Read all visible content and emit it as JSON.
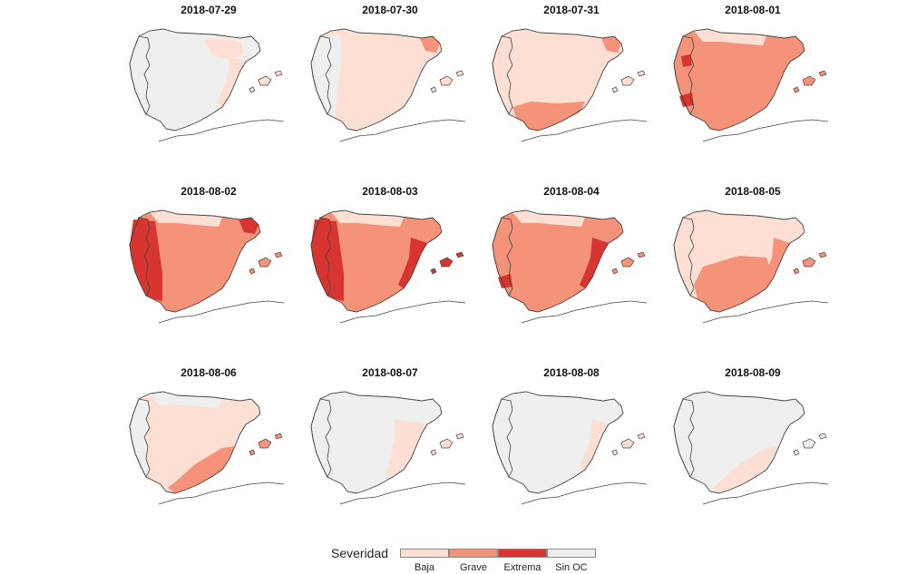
{
  "colors": {
    "Baja": "#fde0d3",
    "Grave": "#f4937a",
    "Extrema": "#d93530",
    "Sin OC": "#efefef",
    "outline": "#444444"
  },
  "panels": [
    {
      "date": "2018-07-29",
      "portugal": "Sin OC",
      "iberia": "Sin OC",
      "zones": [
        {
          "c": "Baja",
          "shape": "northeast"
        },
        {
          "c": "Baja",
          "shape": "east_coast"
        }
      ],
      "balearic": "Baja"
    },
    {
      "date": "2018-07-30",
      "portugal": "Sin OC",
      "iberia": "Baja",
      "zones": [
        {
          "c": "Sin OC",
          "shape": "west_strip"
        },
        {
          "c": "Grave",
          "shape": "ne_tip"
        }
      ],
      "balearic": "Baja"
    },
    {
      "date": "2018-07-31",
      "portugal": "Baja",
      "iberia": "Baja",
      "zones": [
        {
          "c": "Grave",
          "shape": "south"
        },
        {
          "c": "Grave",
          "shape": "ne_tip"
        }
      ],
      "balearic": "Baja"
    },
    {
      "date": "2018-08-01",
      "portugal": "Grave",
      "iberia": "Grave",
      "zones": [
        {
          "c": "Baja",
          "shape": "north_coast"
        },
        {
          "c": "Extrema",
          "shape": "pt_spot_n"
        },
        {
          "c": "Extrema",
          "shape": "pt_spot_s"
        }
      ],
      "balearic": "Grave"
    },
    {
      "date": "2018-08-02",
      "portugal": "Extrema",
      "iberia": "Grave",
      "zones": [
        {
          "c": "Baja",
          "shape": "north_coast"
        },
        {
          "c": "Extrema",
          "shape": "west_band"
        },
        {
          "c": "Extrema",
          "shape": "ne_tip"
        }
      ],
      "balearic": "Grave"
    },
    {
      "date": "2018-08-03",
      "portugal": "Extrema",
      "iberia": "Grave",
      "zones": [
        {
          "c": "Baja",
          "shape": "north_coast"
        },
        {
          "c": "Extrema",
          "shape": "west_band"
        },
        {
          "c": "Extrema",
          "shape": "east_coast"
        }
      ],
      "balearic": "Extrema"
    },
    {
      "date": "2018-08-04",
      "portugal": "Grave",
      "iberia": "Grave",
      "zones": [
        {
          "c": "Baja",
          "shape": "north_coast"
        },
        {
          "c": "Extrema",
          "shape": "east_coast"
        },
        {
          "c": "Extrema",
          "shape": "pt_spot_s"
        }
      ],
      "balearic": "Grave"
    },
    {
      "date": "2018-08-05",
      "portugal": "Baja",
      "iberia": "Baja",
      "zones": [
        {
          "c": "Grave",
          "shape": "center_south"
        },
        {
          "c": "Grave",
          "shape": "east_coast"
        }
      ],
      "balearic": "Grave"
    },
    {
      "date": "2018-08-06",
      "portugal": "Sin OC",
      "iberia": "Baja",
      "zones": [
        {
          "c": "Grave",
          "shape": "southeast"
        },
        {
          "c": "Sin OC",
          "shape": "north_coast"
        }
      ],
      "balearic": "Grave"
    },
    {
      "date": "2018-08-07",
      "portugal": "Sin OC",
      "iberia": "Sin OC",
      "zones": [
        {
          "c": "Baja",
          "shape": "east_coast_wide"
        }
      ],
      "balearic": "Baja"
    },
    {
      "date": "2018-08-08",
      "portugal": "Sin OC",
      "iberia": "Sin OC",
      "zones": [
        {
          "c": "Baja",
          "shape": "east_coast"
        }
      ],
      "balearic": "Baja"
    },
    {
      "date": "2018-08-09",
      "portugal": "Sin OC",
      "iberia": "Sin OC",
      "zones": [
        {
          "c": "Baja",
          "shape": "southeast"
        }
      ],
      "balearic": "Sin OC"
    }
  ],
  "legend": {
    "title": "Severidad",
    "items": [
      {
        "label": "Baja",
        "key": "Baja"
      },
      {
        "label": "Grave",
        "key": "Grave"
      },
      {
        "label": "Extrema",
        "key": "Extrema"
      },
      {
        "label": "Sin OC",
        "key": "Sin OC"
      }
    ]
  }
}
